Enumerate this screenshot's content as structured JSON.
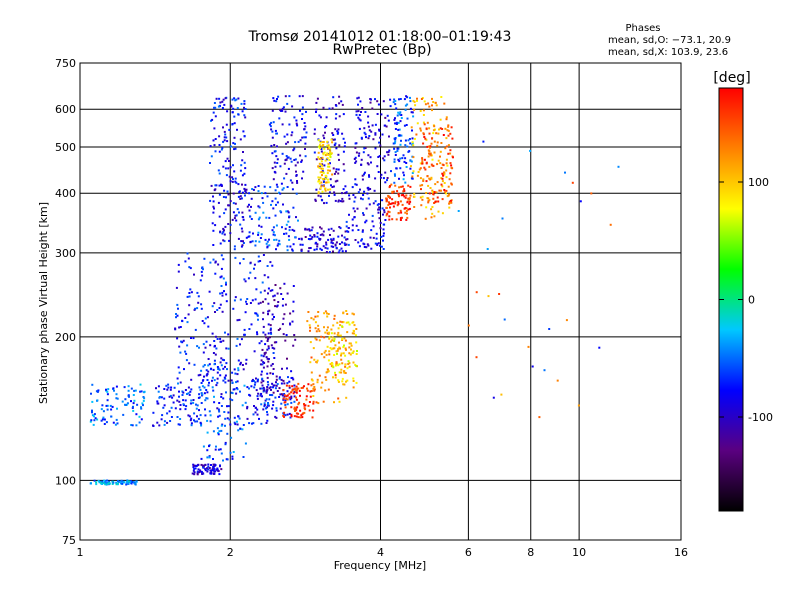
{
  "chart_data": {
    "type": "scatter",
    "title": "Tromsø 20141012 01:18:00–01:19:43",
    "subtitle": "RwPretec (Bp)",
    "xlabel": "Frequency [MHz]",
    "ylabel": "Stationary phase Virtual Height [km]",
    "x_scale": "log",
    "y_scale": "log",
    "xlim": [
      1,
      16
    ],
    "ylim": [
      75,
      750
    ],
    "x_ticks": [
      1,
      2,
      4,
      6,
      8,
      10,
      16
    ],
    "y_ticks": [
      75,
      100,
      200,
      300,
      400,
      500,
      600,
      750
    ],
    "grid": true,
    "legend": {
      "title": "Phases",
      "line1": "mean, sd,O: −73.1, 20.9",
      "line2": "mean, sd,X: 103.9, 23.6",
      "position": "top-right"
    },
    "colorbar": {
      "label": "[deg]",
      "range": [
        -180,
        180
      ],
      "ticks": [
        100,
        0,
        -100
      ],
      "colors": [
        "#000000",
        "#5a0080",
        "#0000ff",
        "#00c8ff",
        "#00ff00",
        "#ffff00",
        "#ff8000",
        "#ff0000"
      ]
    },
    "series": [
      {
        "x": [
          1.05,
          1.3
        ],
        "y": [
          98,
          100
        ],
        "phase": -40
      },
      {
        "x": [
          1.05,
          1.35
        ],
        "y": [
          130,
          160
        ],
        "phase": -50
      },
      {
        "x": [
          1.4,
          1.78
        ],
        "y": [
          130,
          160
        ],
        "phase": -70
      },
      {
        "x": [
          1.55,
          1.95
        ],
        "y": [
          140,
          300
        ],
        "phase": -75
      },
      {
        "x": [
          1.75,
          2.15
        ],
        "y": [
          110,
          180
        ],
        "phase": -60
      },
      {
        "x": [
          1.9,
          2.45
        ],
        "y": [
          130,
          300
        ],
        "phase": -75
      },
      {
        "x": [
          1.68,
          1.92
        ],
        "y": [
          103,
          108
        ],
        "phase": -95
      },
      {
        "x": [
          1.82,
          2.2
        ],
        "y": [
          305,
          420
        ],
        "phase": -85
      },
      {
        "x": [
          1.82,
          2.15
        ],
        "y": [
          420,
          640
        ],
        "phase": -75
      },
      {
        "x": [
          2.2,
          2.75
        ],
        "y": [
          300,
          420
        ],
        "phase": -65
      },
      {
        "x": [
          2.4,
          2.85
        ],
        "y": [
          420,
          640
        ],
        "phase": -85
      },
      {
        "x": [
          2.75,
          3.45
        ],
        "y": [
          300,
          340
        ],
        "phase": -95
      },
      {
        "x": [
          2.95,
          3.4
        ],
        "y": [
          380,
          640
        ],
        "phase": -95
      },
      {
        "x": [
          3.0,
          3.2
        ],
        "y": [
          400,
          520
        ],
        "phase": 95
      },
      {
        "x": [
          3.4,
          4.1
        ],
        "y": [
          305,
          420
        ],
        "phase": -85
      },
      {
        "x": [
          3.55,
          4.2
        ],
        "y": [
          420,
          640
        ],
        "phase": -95
      },
      {
        "x": [
          4.1,
          4.6
        ],
        "y": [
          350,
          420
        ],
        "phase": 160
      },
      {
        "x": [
          4.25,
          4.65
        ],
        "y": [
          420,
          640
        ],
        "phase": -60
      },
      {
        "x": [
          4.6,
          5.5
        ],
        "y": [
          350,
          640
        ],
        "phase": 110
      },
      {
        "x": [
          4.8,
          5.6
        ],
        "y": [
          380,
          560
        ],
        "phase": 150
      },
      {
        "x": [
          2.2,
          2.7
        ],
        "y": [
          135,
          165
        ],
        "phase": -75
      },
      {
        "x": [
          2.3,
          2.7
        ],
        "y": [
          150,
          260
        ],
        "phase": -105
      },
      {
        "x": [
          2.55,
          2.95
        ],
        "y": [
          135,
          160
        ],
        "phase": 160
      },
      {
        "x": [
          2.85,
          3.55
        ],
        "y": [
          145,
          230
        ],
        "phase": 120
      },
      {
        "x": [
          3.1,
          3.6
        ],
        "y": [
          160,
          215
        ],
        "phase": 90
      },
      {
        "x": [
          5.5,
          12.0
        ],
        "y": [
          130,
          600
        ],
        "phase": -60
      },
      {
        "x": [
          6.0,
          12.0
        ],
        "y": [
          130,
          450
        ],
        "phase": 130
      }
    ]
  }
}
